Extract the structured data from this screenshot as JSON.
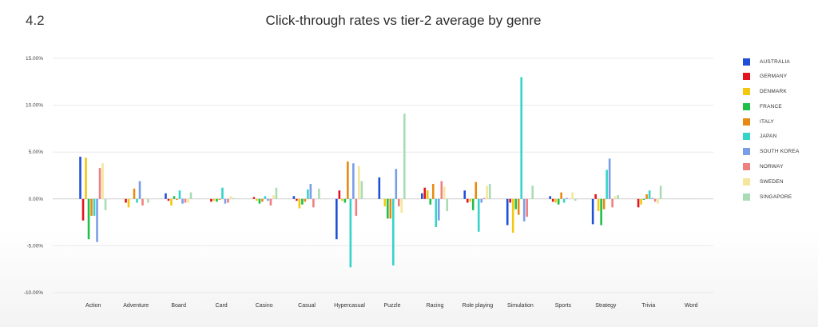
{
  "page": {
    "section_number": "4.2",
    "title": "Click-through rates vs tier-2 average by genre"
  },
  "chart_data": {
    "type": "bar",
    "title": "Click-through rates vs tier-2 average by genre",
    "xlabel": "",
    "ylabel": "",
    "ylim": [
      -10,
      15
    ],
    "yticks": [
      15,
      10,
      5,
      0,
      -5,
      -10
    ],
    "ytick_labels": [
      "15.00%",
      "10.00%",
      "5.00%",
      "0.00%",
      "-5.00%",
      "-10.00%"
    ],
    "grid": true,
    "legend_position": "right",
    "categories": [
      "Action",
      "Adventure",
      "Board",
      "Card",
      "Casino",
      "Casual",
      "Hypercasual",
      "Puzzle",
      "Racing",
      "Role playing",
      "Simulation",
      "Sports",
      "Strategy",
      "Trivia",
      "Word"
    ],
    "series": [
      {
        "name": "AUSTRALIA",
        "color": "#1f4fd6",
        "values": [
          4.5,
          0.0,
          0.6,
          0.0,
          0.0,
          0.3,
          -4.3,
          2.3,
          0.6,
          0.9,
          -2.8,
          0.3,
          -2.7,
          0.0,
          0.0
        ]
      },
      {
        "name": "GERMANY",
        "color": "#e3141d",
        "values": [
          -2.3,
          -0.4,
          -0.2,
          -0.3,
          0.2,
          -0.2,
          0.9,
          0.0,
          1.2,
          -0.4,
          -0.4,
          -0.3,
          0.5,
          -0.9,
          0.0
        ]
      },
      {
        "name": "DENMARK",
        "color": "#f2c80f",
        "values": [
          4.4,
          -0.9,
          -0.7,
          -0.2,
          -0.2,
          -1.0,
          -0.2,
          -0.8,
          0.9,
          -0.3,
          -3.6,
          -0.4,
          -1.3,
          -0.6,
          0.0
        ]
      },
      {
        "name": "FRANCE",
        "color": "#1fc04a",
        "values": [
          -4.3,
          0.0,
          0.3,
          -0.3,
          -0.5,
          -0.6,
          -0.4,
          -2.1,
          -0.6,
          -1.2,
          -1.1,
          -0.6,
          -2.8,
          -0.1,
          0.0
        ]
      },
      {
        "name": "ITALY",
        "color": "#e88a12",
        "values": [
          -1.8,
          1.1,
          -0.1,
          -0.1,
          -0.3,
          -0.3,
          4.0,
          -2.1,
          1.6,
          1.8,
          -1.7,
          0.7,
          -1.1,
          0.5,
          0.0
        ]
      },
      {
        "name": "JAPAN",
        "color": "#35d4c8",
        "values": [
          -1.8,
          -0.4,
          0.9,
          1.2,
          0.3,
          1.0,
          -7.3,
          -7.1,
          -3.0,
          -3.5,
          13.0,
          -0.4,
          3.1,
          0.9,
          0.0
        ]
      },
      {
        "name": "SOUTH KOREA",
        "color": "#7a9ee6",
        "values": [
          -4.6,
          1.9,
          -0.5,
          -0.5,
          -0.2,
          1.6,
          3.8,
          3.2,
          -2.3,
          -0.4,
          -2.4,
          0.1,
          4.3,
          0.1,
          0.0
        ]
      },
      {
        "name": "NORWAY",
        "color": "#f08080",
        "values": [
          3.3,
          -0.7,
          -0.4,
          -0.4,
          -0.7,
          -0.9,
          -1.8,
          -0.8,
          1.9,
          0.1,
          -1.9,
          0.0,
          -0.9,
          -0.3,
          0.0
        ]
      },
      {
        "name": "SWEDEN",
        "color": "#f6e59a",
        "values": [
          3.8,
          0.1,
          -0.4,
          0.3,
          0.4,
          0.0,
          3.5,
          -1.5,
          1.3,
          1.4,
          0.0,
          0.7,
          0.3,
          -0.5,
          0.0
        ]
      },
      {
        "name": "SINGAPORE",
        "color": "#a9dcb4",
        "values": [
          -1.2,
          -0.4,
          0.7,
          0.1,
          1.2,
          1.1,
          1.9,
          9.1,
          -1.3,
          1.6,
          1.4,
          -0.2,
          0.4,
          1.4,
          0.0
        ]
      }
    ]
  }
}
